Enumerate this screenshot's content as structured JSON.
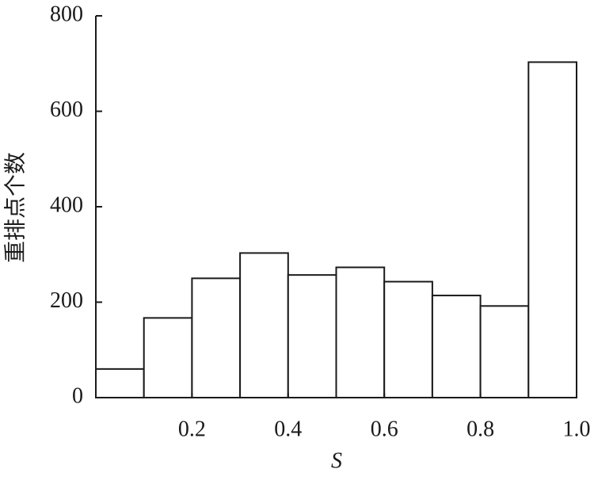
{
  "chart_data": {
    "type": "histogram",
    "xlabel": "S",
    "ylabel": "重排点个数",
    "bins": [
      0,
      0.1,
      0.2,
      0.3,
      0.4,
      0.5,
      0.6,
      0.7,
      0.8,
      0.9,
      1.0
    ],
    "counts": [
      60,
      167,
      250,
      303,
      257,
      273,
      243,
      214,
      192,
      703
    ],
    "color": "#ffffff",
    "xlim": [
      0,
      1
    ],
    "xticks": [
      0.2,
      0.4,
      0.6,
      0.8,
      {
        "value": 1,
        "label": "1.0"
      }
    ],
    "ylim": [
      0,
      800
    ],
    "yticks": [
      0,
      200,
      400,
      600,
      800
    ]
  }
}
